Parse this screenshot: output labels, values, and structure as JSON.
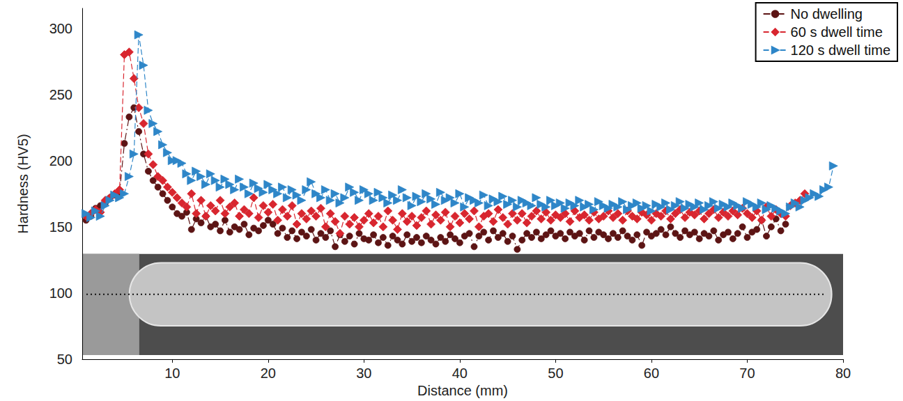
{
  "chart_data": {
    "type": "line",
    "xlabel": "Distance (mm)",
    "ylabel": "Hardness (HV5)",
    "xlim": [
      0.6,
      80
    ],
    "xticks": [
      10,
      20,
      30,
      40,
      50,
      60,
      70,
      80
    ],
    "ylim": [
      50,
      315
    ],
    "yticks": [
      50,
      100,
      150,
      200,
      250,
      300
    ],
    "grid": false,
    "legend": "upper right",
    "x": [
      1,
      1.5,
      2,
      2.5,
      3,
      3.5,
      4,
      4.5,
      5,
      5.5,
      6,
      6.5,
      7,
      7.5,
      8,
      8.5,
      9,
      9.5,
      10,
      10.5,
      11,
      11.5,
      12,
      12.5,
      13,
      13.5,
      14,
      14.5,
      15,
      15.5,
      16,
      16.5,
      17,
      17.5,
      18,
      18.5,
      19,
      19.5,
      20,
      20.5,
      21,
      21.5,
      22,
      22.5,
      23,
      23.5,
      24,
      24.5,
      25,
      25.5,
      26,
      26.5,
      27,
      27.5,
      28,
      28.5,
      29,
      29.5,
      30,
      30.5,
      31,
      31.5,
      32,
      32.5,
      33,
      33.5,
      34,
      34.5,
      35,
      35.5,
      36,
      36.5,
      37,
      37.5,
      38,
      38.5,
      39,
      39.5,
      40,
      40.5,
      41,
      41.5,
      42,
      42.5,
      43,
      43.5,
      44,
      44.5,
      45,
      45.5,
      46,
      46.5,
      47,
      47.5,
      48,
      48.5,
      49,
      49.5,
      50,
      50.5,
      51,
      51.5,
      52,
      52.5,
      53,
      53.5,
      54,
      54.5,
      55,
      55.5,
      56,
      56.5,
      57,
      57.5,
      58,
      58.5,
      59,
      59.5,
      60,
      60.5,
      61,
      61.5,
      62,
      62.5,
      63,
      63.5,
      64,
      64.5,
      65,
      65.5,
      66,
      66.5,
      67,
      67.5,
      68,
      68.5,
      69,
      69.5,
      70,
      70.5,
      71,
      71.5,
      72,
      72.5,
      73,
      73.5,
      74,
      74.5,
      75,
      75.5,
      76,
      76.5,
      77,
      77.5,
      78,
      78.5,
      79
    ],
    "series": [
      {
        "name": "No dwelling",
        "color": "#5c1414",
        "marker": "circle",
        "line_style": "dashdot",
        "values": [
          155,
          158,
          164,
          166,
          168,
          172,
          174,
          176,
          213,
          233,
          240,
          222,
          205,
          192,
          185,
          180,
          175,
          170,
          165,
          160,
          158,
          161,
          148,
          156,
          153,
          158,
          150,
          152,
          147,
          155,
          146,
          150,
          148,
          152,
          144,
          149,
          147,
          151,
          155,
          152,
          145,
          149,
          142,
          147,
          141,
          146,
          143,
          148,
          140,
          145,
          142,
          147,
          135,
          144,
          139,
          143,
          137,
          145,
          141,
          140,
          144,
          138,
          142,
          136,
          143,
          140,
          137,
          144,
          139,
          142,
          138,
          143,
          140,
          137,
          142,
          139,
          144,
          141,
          138,
          143,
          145,
          135,
          143,
          146,
          140,
          147,
          142,
          145,
          139,
          143,
          133,
          140,
          145,
          142,
          146,
          141,
          144,
          147,
          143,
          145,
          141,
          146,
          143,
          145,
          140,
          147,
          142,
          146,
          144,
          141,
          145,
          142,
          147,
          143,
          140,
          144,
          136,
          146,
          143,
          145,
          148,
          144,
          150,
          145,
          142,
          147,
          144,
          146,
          141,
          145,
          143,
          147,
          140,
          144,
          146,
          141,
          145,
          150,
          142,
          146,
          148,
          155,
          143,
          150,
          156,
          147,
          152,
          null,
          null,
          null,
          null,
          null,
          null,
          null,
          null,
          null,
          null
        ]
      },
      {
        "name": "60 s dwell time",
        "color": "#d8262f",
        "marker": "diamond",
        "line_style": "dashed",
        "values": [
          158,
          160,
          163,
          161,
          170,
          172,
          175,
          178,
          280,
          282,
          262,
          240,
          228,
          205,
          197,
          188,
          185,
          180,
          176,
          172,
          168,
          165,
          175,
          160,
          170,
          158,
          166,
          162,
          170,
          160,
          165,
          168,
          158,
          163,
          160,
          172,
          157,
          166,
          161,
          167,
          155,
          163,
          158,
          166,
          152,
          160,
          156,
          162,
          158,
          164,
          150,
          160,
          154,
          145,
          158,
          152,
          157,
          150,
          155,
          160,
          153,
          158,
          150,
          162,
          155,
          148,
          160,
          154,
          158,
          151,
          157,
          162,
          152,
          159,
          155,
          161,
          150,
          158,
          153,
          160,
          156,
          162,
          150,
          158,
          160,
          154,
          163,
          157,
          152,
          160,
          155,
          160,
          153,
          158,
          162,
          156,
          161,
          155,
          159,
          157,
          160,
          154,
          162,
          157,
          159,
          155,
          161,
          156,
          158,
          162,
          157,
          160,
          155,
          162,
          158,
          156,
          161,
          159,
          155,
          160,
          158,
          162,
          156,
          160,
          163,
          157,
          161,
          159,
          162,
          156,
          160,
          163,
          157,
          161,
          158,
          162,
          159,
          164,
          160,
          157,
          162,
          155,
          165,
          158,
          163,
          160,
          158,
          166,
          168,
          170,
          175,
          null,
          null,
          null,
          null,
          null,
          null
        ]
      },
      {
        "name": "120 s dwell time",
        "color": "#2e86c8",
        "marker": "triangle-right",
        "line_style": "dashed",
        "values": [
          160,
          157,
          162,
          158,
          166,
          170,
          174,
          172,
          175,
          188,
          205,
          295,
          272,
          238,
          228,
          222,
          212,
          206,
          200,
          200,
          198,
          190,
          185,
          192,
          188,
          182,
          190,
          185,
          180,
          186,
          182,
          178,
          186,
          180,
          175,
          183,
          179,
          176,
          182,
          178,
          175,
          180,
          172,
          178,
          174,
          170,
          178,
          184,
          175,
          172,
          178,
          170,
          175,
          168,
          172,
          180,
          176,
          170,
          178,
          175,
          170,
          176,
          172,
          168,
          174,
          170,
          178,
          172,
          166,
          173,
          169,
          175,
          171,
          167,
          176,
          170,
          172,
          168,
          175,
          165,
          172,
          170,
          168,
          174,
          166,
          171,
          169,
          173,
          167,
          170,
          165,
          170,
          168,
          166,
          172,
          167,
          165,
          170,
          166,
          168,
          164,
          168,
          166,
          170,
          165,
          167,
          163,
          169,
          166,
          164,
          167,
          165,
          169,
          163,
          166,
          168,
          164,
          166,
          162,
          167,
          165,
          168,
          163,
          166,
          169,
          164,
          167,
          165,
          168,
          163,
          166,
          169,
          164,
          167,
          165,
          168,
          166,
          164,
          169,
          167,
          165,
          168,
          163,
          166,
          164,
          162,
          160,
          165,
          168,
          165,
          170,
          172,
          175,
          173,
          178,
          180,
          196
        ]
      }
    ]
  }
}
